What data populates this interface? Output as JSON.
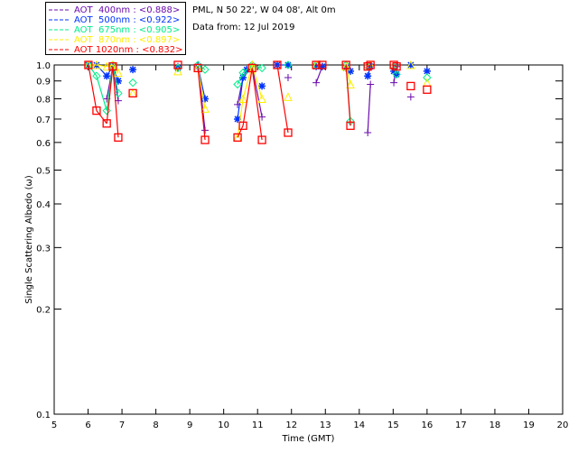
{
  "header": {
    "location": "PML, N 50 22', W 04 08', Alt 0m",
    "date": "Data from: 12 Jul 2019"
  },
  "chart_data": {
    "type": "scatter",
    "title": "",
    "xlabel": "Time (GMT)",
    "ylabel": "Single Scattering Albedo (ω)",
    "xlim": [
      5,
      20
    ],
    "ylim": [
      0.1,
      1.0
    ],
    "yscale": "log",
    "xticks": [
      "5",
      "6",
      "7",
      "8",
      "9",
      "10",
      "11",
      "12",
      "13",
      "14",
      "15",
      "16",
      "17",
      "18",
      "19",
      "20"
    ],
    "yticks": [
      {
        "v": 1.0,
        "label": "1.0"
      },
      {
        "v": 0.9,
        "label": "0.9"
      },
      {
        "v": 0.8,
        "label": "0.8"
      },
      {
        "v": 0.7,
        "label": "0.7"
      },
      {
        "v": 0.6,
        "label": "0.6"
      },
      {
        "v": 0.5,
        "label": "0.5"
      },
      {
        "v": 0.4,
        "label": "0.4"
      },
      {
        "v": 0.3,
        "label": "0.3"
      },
      {
        "v": 0.2,
        "label": "0.2"
      },
      {
        "v": 0.1,
        "label": "0.1"
      }
    ],
    "legend_position": "top-left-outside",
    "series": [
      {
        "name": "AOT  400nm : <0.888>",
        "color": "#6a0dad",
        "marker": "plus",
        "points": [
          [
            6.01,
            1.0
          ],
          [
            6.55,
            0.8
          ],
          [
            6.73,
            0.99
          ],
          [
            6.89,
            0.79
          ],
          [
            8.65,
            0.99
          ],
          [
            9.24,
            1.0
          ],
          [
            9.45,
            0.65
          ],
          [
            10.41,
            0.77
          ],
          [
            10.57,
            0.92
          ],
          [
            10.84,
            0.99
          ],
          [
            11.13,
            0.71
          ],
          [
            11.9,
            0.92
          ],
          [
            12.73,
            0.89
          ],
          [
            12.91,
            0.99
          ],
          [
            13.61,
            1.0
          ],
          [
            14.25,
            0.64
          ],
          [
            14.33,
            0.88
          ],
          [
            15.02,
            0.89
          ],
          [
            15.1,
            0.99
          ],
          [
            15.52,
            0.81
          ],
          [
            16.0,
            0.96
          ]
        ]
      },
      {
        "name": "AOT  500nm : <0.922>",
        "color": "#0033ff",
        "marker": "asterisk",
        "points": [
          [
            6.01,
            1.0
          ],
          [
            6.25,
            1.0
          ],
          [
            6.55,
            0.93
          ],
          [
            6.73,
            0.99
          ],
          [
            6.89,
            0.9
          ],
          [
            7.32,
            0.97
          ],
          [
            8.65,
            0.98
          ],
          [
            9.24,
            0.99
          ],
          [
            9.45,
            0.8
          ],
          [
            10.41,
            0.7
          ],
          [
            10.57,
            0.92
          ],
          [
            10.68,
            0.97
          ],
          [
            11.13,
            0.87
          ],
          [
            11.58,
            1.0
          ],
          [
            11.9,
            1.0
          ],
          [
            12.73,
            0.99
          ],
          [
            12.91,
            0.99
          ],
          [
            13.61,
            0.98
          ],
          [
            13.74,
            0.96
          ],
          [
            14.25,
            0.93
          ],
          [
            14.33,
            0.99
          ],
          [
            15.02,
            0.96
          ],
          [
            15.1,
            0.94
          ],
          [
            15.52,
            1.0
          ],
          [
            16.0,
            0.96
          ]
        ]
      },
      {
        "name": "AOT  675nm : <0.905>",
        "color": "#00ee88",
        "marker": "diamond",
        "points": [
          [
            6.01,
            1.0
          ],
          [
            6.25,
            0.93
          ],
          [
            6.55,
            0.74
          ],
          [
            6.73,
            1.0
          ],
          [
            6.89,
            0.83
          ],
          [
            7.32,
            0.89
          ],
          [
            8.65,
            0.98
          ],
          [
            9.24,
            1.0
          ],
          [
            9.45,
            0.97
          ],
          [
            10.41,
            0.88
          ],
          [
            10.57,
            0.95
          ],
          [
            10.84,
            1.0
          ],
          [
            11.13,
            0.98
          ],
          [
            11.9,
            1.0
          ],
          [
            12.73,
            1.0
          ],
          [
            13.61,
            1.0
          ],
          [
            13.74,
            0.69
          ],
          [
            14.25,
            0.99
          ],
          [
            15.02,
            0.99
          ],
          [
            15.1,
            0.94
          ],
          [
            16.0,
            0.92
          ]
        ]
      },
      {
        "name": "AOT  870nm : <0.897>",
        "color": "#ffee00",
        "marker": "triangle",
        "points": [
          [
            6.01,
            1.0
          ],
          [
            6.25,
            1.0
          ],
          [
            6.55,
            0.99
          ],
          [
            6.73,
            1.0
          ],
          [
            6.89,
            0.95
          ],
          [
            7.32,
            0.83
          ],
          [
            8.65,
            0.96
          ],
          [
            9.24,
            0.98
          ],
          [
            9.45,
            0.75
          ],
          [
            10.41,
            0.62
          ],
          [
            10.57,
            0.8
          ],
          [
            10.84,
            1.0
          ],
          [
            11.13,
            0.8
          ],
          [
            11.9,
            0.81
          ],
          [
            12.73,
            1.0
          ],
          [
            13.61,
            0.99
          ],
          [
            13.74,
            0.88
          ],
          [
            14.33,
            1.0
          ],
          [
            15.52,
            1.0
          ],
          [
            16.0,
            0.89
          ]
        ]
      },
      {
        "name": "AOT 1020nm : <0.832>",
        "color": "#ff0000",
        "marker": "square",
        "points": [
          [
            6.01,
            1.0
          ],
          [
            6.25,
            0.74
          ],
          [
            6.55,
            0.68
          ],
          [
            6.73,
            0.99
          ],
          [
            6.89,
            0.62
          ],
          [
            7.32,
            0.83
          ],
          [
            8.65,
            1.0
          ],
          [
            9.24,
            0.98
          ],
          [
            9.45,
            0.61
          ],
          [
            10.41,
            0.62
          ],
          [
            10.57,
            0.67
          ],
          [
            10.84,
            0.98
          ],
          [
            11.13,
            0.61
          ],
          [
            11.58,
            1.0
          ],
          [
            11.9,
            0.64
          ],
          [
            12.73,
            1.0
          ],
          [
            12.91,
            1.0
          ],
          [
            13.61,
            1.0
          ],
          [
            13.74,
            0.67
          ],
          [
            14.25,
            0.99
          ],
          [
            14.33,
            1.0
          ],
          [
            15.02,
            1.0
          ],
          [
            15.1,
            0.99
          ],
          [
            15.52,
            0.87
          ],
          [
            16.0,
            0.85
          ]
        ]
      }
    ]
  }
}
